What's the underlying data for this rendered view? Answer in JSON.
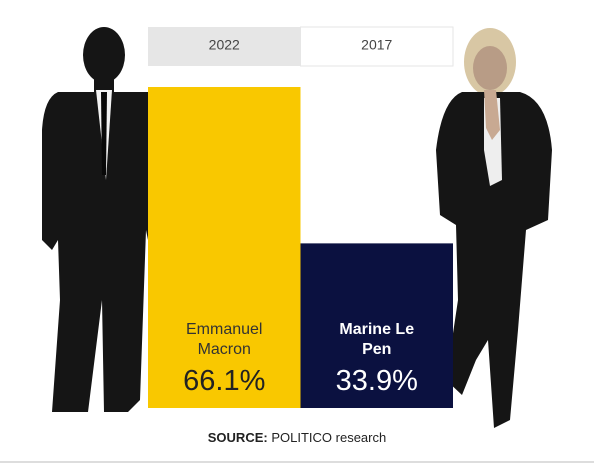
{
  "chart_data": {
    "type": "bar",
    "tabs": [
      "2022",
      "2017"
    ],
    "active_tab": 1,
    "categories": [
      "Emmanuel Macron",
      "Marine Le Pen"
    ],
    "values": [
      66.1,
      33.9
    ],
    "value_labels": [
      "66.1%",
      "33.9%"
    ],
    "colors": [
      "#f9c800",
      "#0b1140"
    ],
    "source_label": "SOURCE:",
    "source": "POLITICO research"
  }
}
